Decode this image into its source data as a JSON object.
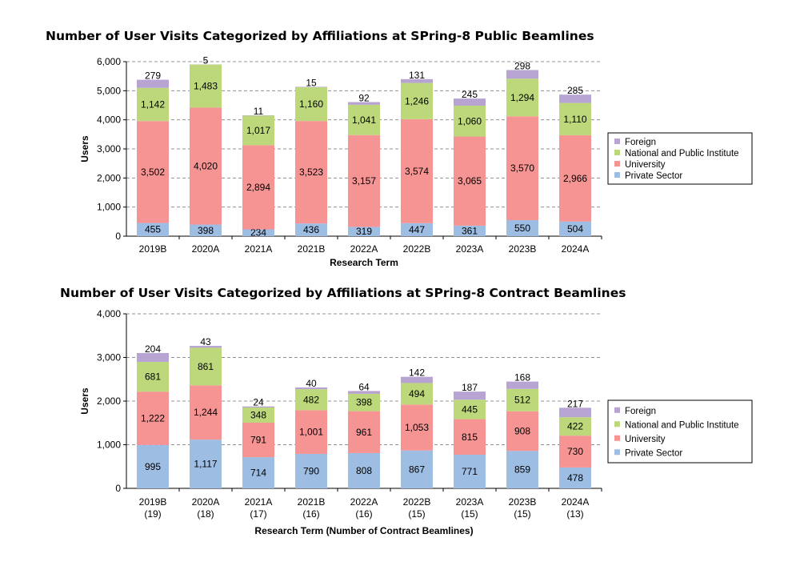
{
  "colors": {
    "Private Sector": "#9ebde3",
    "University": "#f69494",
    "National and Public Institute": "#bcd87a",
    "Foreign": "#b7a4d2"
  },
  "chart_data": [
    {
      "type": "bar",
      "stacked": true,
      "title": "Number of User Visits Categorized by Affiliations at SPring-8 Public Beamlines",
      "xlabel": "Research Term",
      "ylabel": "Users",
      "ylim": [
        0,
        6000
      ],
      "yticks": [
        "0",
        "1,000",
        "2,000",
        "3,000",
        "4,000",
        "5,000",
        "6,000"
      ],
      "grid": true,
      "legend_position": "right",
      "categories": [
        [
          "2019B"
        ],
        [
          "2020A"
        ],
        [
          "2021A"
        ],
        [
          "2021B"
        ],
        [
          "2022A"
        ],
        [
          "2022B"
        ],
        [
          "2023A"
        ],
        [
          "2023B"
        ],
        [
          "2024A"
        ]
      ],
      "series": [
        {
          "name": "Private Sector",
          "values": [
            455,
            398,
            234,
            436,
            319,
            447,
            361,
            550,
            504
          ],
          "labels": [
            "455",
            "398",
            "234",
            "436",
            "319",
            "447",
            "361",
            "550",
            "504"
          ]
        },
        {
          "name": "University",
          "values": [
            3502,
            4020,
            2894,
            3523,
            3157,
            3574,
            3065,
            3570,
            2966
          ],
          "labels": [
            "3,502",
            "4,020",
            "2,894",
            "3,523",
            "3,157",
            "3,574",
            "3,065",
            "3,570",
            "2,966"
          ]
        },
        {
          "name": "National and Public Institute",
          "values": [
            1142,
            1483,
            1017,
            1160,
            1041,
            1246,
            1060,
            1294,
            1110
          ],
          "labels": [
            "1,142",
            "1,483",
            "1,017",
            "1,160",
            "1,041",
            "1,246",
            "1,060",
            "1,294",
            "1,110"
          ]
        },
        {
          "name": "Foreign",
          "values": [
            279,
            5,
            11,
            15,
            92,
            131,
            245,
            298,
            285
          ],
          "labels": [
            "279",
            "5",
            "11",
            "15",
            "92",
            "131",
            "245",
            "298",
            "285"
          ]
        }
      ]
    },
    {
      "type": "bar",
      "stacked": true,
      "title": "Number of User Visits Categorized by Affiliations at SPring-8 Contract Beamlines",
      "xlabel": "Research Term (Number of Contract Beamlines)",
      "ylabel": "Users",
      "ylim": [
        0,
        4000
      ],
      "yticks": [
        "0",
        "1,000",
        "2,000",
        "3,000",
        "4,000"
      ],
      "grid": true,
      "legend_position": "right",
      "categories": [
        [
          "2019B",
          "(19)"
        ],
        [
          "2020A",
          "(18)"
        ],
        [
          "2021A",
          "(17)"
        ],
        [
          "2021B",
          "(16)"
        ],
        [
          "2022A",
          "(16)"
        ],
        [
          "2022B",
          "(15)"
        ],
        [
          "2023A",
          "(15)"
        ],
        [
          "2023B",
          "(15)"
        ],
        [
          "2024A",
          "(13)"
        ]
      ],
      "series": [
        {
          "name": "Private Sector",
          "values": [
            995,
            1117,
            714,
            790,
            808,
            867,
            771,
            859,
            478
          ],
          "labels": [
            "995",
            "1,117",
            "714",
            "790",
            "808",
            "867",
            "771",
            "859",
            "478"
          ]
        },
        {
          "name": "University",
          "values": [
            1222,
            1244,
            791,
            1001,
            961,
            1053,
            815,
            908,
            730
          ],
          "labels": [
            "1,222",
            "1,244",
            "791",
            "1,001",
            "961",
            "1,053",
            "815",
            "908",
            "730"
          ]
        },
        {
          "name": "National and Public Institute",
          "values": [
            681,
            861,
            348,
            482,
            398,
            494,
            445,
            512,
            422
          ],
          "labels": [
            "681",
            "861",
            "348",
            "482",
            "398",
            "494",
            "445",
            "512",
            "422"
          ]
        },
        {
          "name": "Foreign",
          "values": [
            204,
            43,
            24,
            40,
            64,
            142,
            187,
            168,
            217
          ],
          "labels": [
            "204",
            "43",
            "24",
            "40",
            "64",
            "142",
            "187",
            "168",
            "217"
          ]
        }
      ]
    }
  ]
}
